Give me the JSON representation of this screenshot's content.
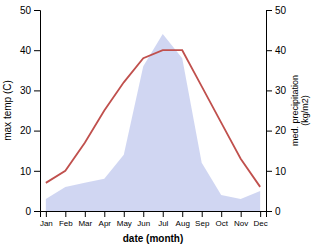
{
  "chart_data": {
    "type": "line",
    "xlabel": "date (month)",
    "ylabel": "max temp (C)",
    "y2label": "med. precipitation\n(kg/m2)",
    "categories": [
      "Jan",
      "Feb",
      "Mar",
      "Apr",
      "May",
      "Jun",
      "Jul",
      "Aug",
      "Sep",
      "Oct",
      "Nov",
      "Dec"
    ],
    "series": [
      {
        "type": "area",
        "axis": "y2",
        "color": "#aab4e8",
        "values": [
          3,
          6,
          7,
          8,
          14,
          36,
          44,
          38,
          12,
          4,
          3,
          5
        ]
      },
      {
        "type": "line",
        "color": "#c0504d",
        "values": [
          7,
          10,
          17,
          25,
          32,
          38,
          40,
          40,
          31,
          22,
          13,
          6
        ]
      }
    ],
    "ylim": [
      0,
      50
    ],
    "yticks": [
      0,
      10,
      20,
      30,
      40,
      50
    ],
    "y2lim": [
      0,
      50
    ],
    "y2ticks": [
      0,
      10,
      20,
      30,
      40,
      50
    ],
    "grid": false
  }
}
